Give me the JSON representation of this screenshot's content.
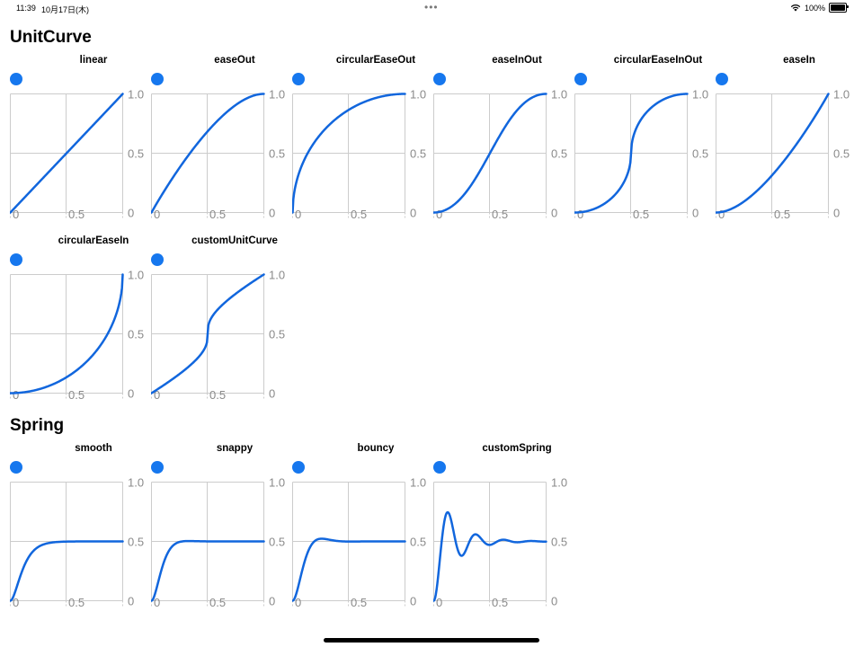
{
  "status_bar": {
    "time": "11:39",
    "date": "10月17日(木)",
    "battery": "100%",
    "battery_level": 1.0,
    "wifi_icon": "wifi-icon",
    "battery_icon": "battery-icon",
    "multitask_icon": "more-dots-icon"
  },
  "axis": {
    "y_ticks": [
      "1.0",
      "0.5",
      "0"
    ],
    "x_ticks": [
      "0",
      "0.5"
    ]
  },
  "colors": {
    "accent": "#1677ee",
    "curve": "#1166dd",
    "grid": "#cccccc",
    "tick_text": "#8a8a8a"
  },
  "sections": {
    "unitcurve": {
      "title": "UnitCurve"
    },
    "spring": {
      "title": "Spring"
    }
  },
  "panels": [
    {
      "id": "linear",
      "title": "linear",
      "curve": "linear"
    },
    {
      "id": "easeOut",
      "title": "easeOut",
      "curve": "easeOut"
    },
    {
      "id": "circularEaseOut",
      "title": "circularEaseOut",
      "curve": "circularEaseOut"
    },
    {
      "id": "easeInOut",
      "title": "easeInOut",
      "curve": "easeInOut"
    },
    {
      "id": "circularEaseInOut",
      "title": "circularEaseInOut",
      "curve": "circularEaseInOut"
    },
    {
      "id": "easeIn",
      "title": "easeIn",
      "curve": "easeIn"
    },
    {
      "id": "circularEaseIn",
      "title": "circularEaseIn",
      "curve": "circularEaseIn"
    },
    {
      "id": "customUnitCurve",
      "title": "customUnitCurve",
      "curve": "customUnitCurve"
    },
    {
      "id": "smooth",
      "title": "smooth",
      "curve": "smooth"
    },
    {
      "id": "snappy",
      "title": "snappy",
      "curve": "snappy"
    },
    {
      "id": "bouncy",
      "title": "bouncy",
      "curve": "bouncy"
    },
    {
      "id": "customSpring",
      "title": "customSpring",
      "curve": "customSpring"
    }
  ]
}
